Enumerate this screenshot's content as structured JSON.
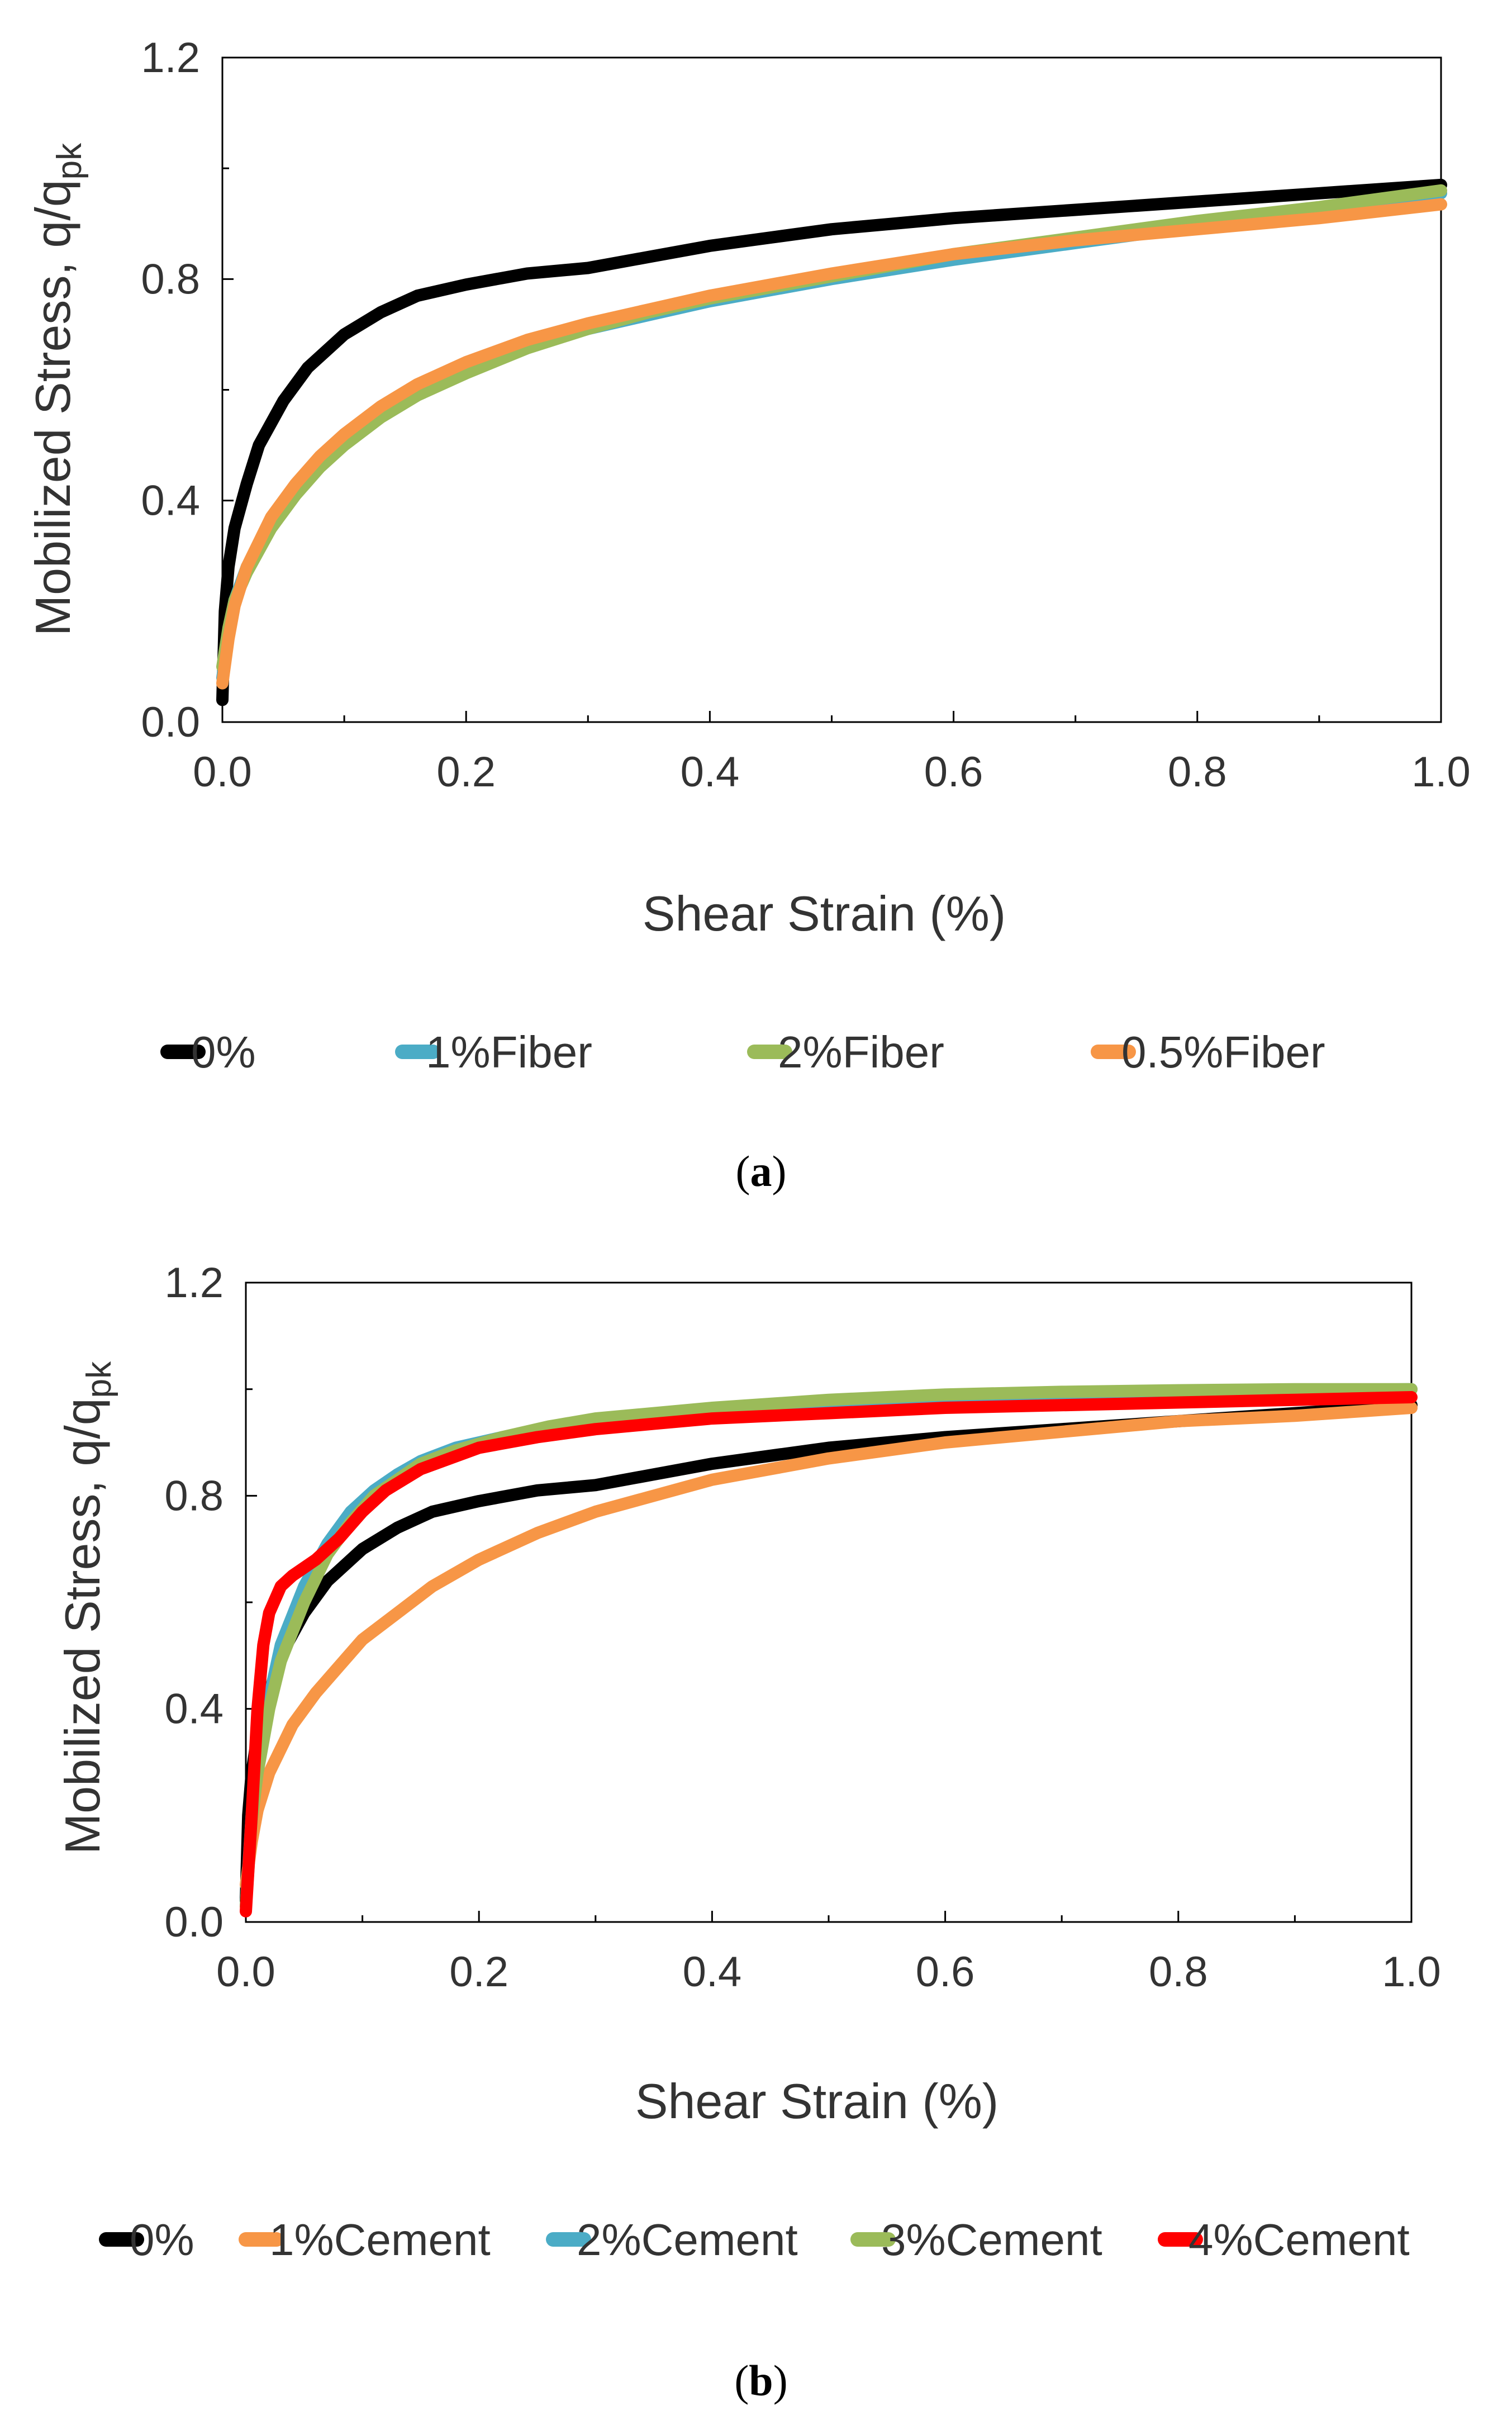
{
  "chart_data": [
    {
      "type": "line",
      "panel_label": "(a)",
      "xlabel": "Shear Strain (%)",
      "ylabel": "Mobilized Stress, q/q",
      "ylabel_sub": "pk",
      "xlim": [
        0,
        1.0
      ],
      "ylim": [
        0,
        1.2
      ],
      "xticks": [
        "0.0",
        "0.2",
        "0.4",
        "0.6",
        "0.8",
        "1.0"
      ],
      "yticks": [
        "0.0",
        "0.4",
        "0.8",
        "1.2"
      ],
      "grid": false,
      "legend_position": "bottom",
      "series": [
        {
          "name": "0%",
          "color": "#000000",
          "x": [
            0,
            0.002,
            0.005,
            0.01,
            0.02,
            0.03,
            0.05,
            0.07,
            0.1,
            0.13,
            0.16,
            0.2,
            0.25,
            0.3,
            0.35,
            0.4,
            0.45,
            0.5,
            0.55,
            0.6,
            0.7,
            0.8,
            0.9,
            1.0
          ],
          "y": [
            0.04,
            0.2,
            0.28,
            0.35,
            0.43,
            0.5,
            0.58,
            0.64,
            0.7,
            0.74,
            0.77,
            0.79,
            0.81,
            0.82,
            0.84,
            0.86,
            0.875,
            0.89,
            0.9,
            0.91,
            0.925,
            0.94,
            0.955,
            0.97
          ]
        },
        {
          "name": "1%Fiber",
          "color": "#4BACC6",
          "x": [
            0,
            0.005,
            0.01,
            0.02,
            0.04,
            0.06,
            0.08,
            0.1,
            0.13,
            0.16,
            0.2,
            0.25,
            0.3,
            0.35,
            0.4,
            0.45,
            0.5,
            0.6,
            0.7,
            0.8,
            0.9,
            1.0
          ],
          "y": [
            0.08,
            0.16,
            0.22,
            0.28,
            0.36,
            0.42,
            0.47,
            0.51,
            0.56,
            0.6,
            0.64,
            0.68,
            0.71,
            0.735,
            0.76,
            0.78,
            0.8,
            0.835,
            0.865,
            0.895,
            0.925,
            0.955
          ]
        },
        {
          "name": "2%Fiber",
          "color": "#9BBB59",
          "x": [
            0,
            0.005,
            0.01,
            0.02,
            0.04,
            0.06,
            0.08,
            0.1,
            0.13,
            0.16,
            0.2,
            0.25,
            0.3,
            0.35,
            0.4,
            0.45,
            0.5,
            0.6,
            0.7,
            0.8,
            0.9,
            1.0
          ],
          "y": [
            0.1,
            0.17,
            0.22,
            0.27,
            0.35,
            0.41,
            0.46,
            0.5,
            0.55,
            0.59,
            0.63,
            0.675,
            0.71,
            0.74,
            0.765,
            0.785,
            0.805,
            0.845,
            0.875,
            0.905,
            0.93,
            0.96
          ]
        },
        {
          "name": "0.5%Fiber",
          "color": "#F79646",
          "x": [
            0,
            0.005,
            0.01,
            0.02,
            0.04,
            0.06,
            0.08,
            0.1,
            0.13,
            0.16,
            0.2,
            0.25,
            0.3,
            0.35,
            0.4,
            0.45,
            0.5,
            0.6,
            0.7,
            0.8,
            0.9,
            1.0
          ],
          "y": [
            0.07,
            0.15,
            0.21,
            0.28,
            0.37,
            0.43,
            0.48,
            0.52,
            0.57,
            0.61,
            0.65,
            0.69,
            0.72,
            0.745,
            0.77,
            0.79,
            0.81,
            0.845,
            0.87,
            0.89,
            0.91,
            0.935
          ]
        }
      ]
    },
    {
      "type": "line",
      "panel_label": "(b)",
      "xlabel": "Shear Strain (%)",
      "ylabel": "Mobilized Stress, q/q",
      "ylabel_sub": "pk",
      "xlim": [
        0,
        1.0
      ],
      "ylim": [
        0,
        1.2
      ],
      "xticks": [
        "0.0",
        "0.2",
        "0.4",
        "0.6",
        "0.8",
        "1.0"
      ],
      "yticks": [
        "0.0",
        "0.4",
        "0.8",
        "1.2"
      ],
      "grid": false,
      "legend_position": "bottom",
      "series": [
        {
          "name": "0%",
          "color": "#000000",
          "x": [
            0,
            0.002,
            0.005,
            0.01,
            0.02,
            0.03,
            0.05,
            0.07,
            0.1,
            0.13,
            0.16,
            0.2,
            0.25,
            0.3,
            0.35,
            0.4,
            0.45,
            0.5,
            0.55,
            0.6,
            0.7,
            0.8,
            0.9,
            1.0
          ],
          "y": [
            0.04,
            0.2,
            0.28,
            0.35,
            0.43,
            0.5,
            0.58,
            0.64,
            0.7,
            0.74,
            0.77,
            0.79,
            0.81,
            0.82,
            0.84,
            0.86,
            0.875,
            0.89,
            0.9,
            0.91,
            0.925,
            0.94,
            0.955,
            0.97
          ]
        },
        {
          "name": "1%Cement",
          "color": "#F79646",
          "x": [
            0,
            0.005,
            0.01,
            0.02,
            0.04,
            0.06,
            0.08,
            0.1,
            0.13,
            0.16,
            0.2,
            0.25,
            0.3,
            0.35,
            0.4,
            0.45,
            0.5,
            0.6,
            0.7,
            0.8,
            0.9,
            1.0
          ],
          "y": [
            0.07,
            0.15,
            0.21,
            0.28,
            0.37,
            0.43,
            0.48,
            0.53,
            0.58,
            0.63,
            0.68,
            0.73,
            0.77,
            0.8,
            0.83,
            0.85,
            0.87,
            0.9,
            0.92,
            0.94,
            0.95,
            0.965
          ]
        },
        {
          "name": "2%Cement",
          "color": "#4BACC6",
          "x": [
            0,
            0.005,
            0.01,
            0.02,
            0.03,
            0.05,
            0.07,
            0.09,
            0.11,
            0.13,
            0.15,
            0.18,
            0.22,
            0.26,
            0.3,
            0.35,
            0.4,
            0.5,
            0.6,
            0.7,
            0.8,
            0.9,
            1.0
          ],
          "y": [
            0.03,
            0.2,
            0.3,
            0.42,
            0.52,
            0.63,
            0.71,
            0.77,
            0.81,
            0.84,
            0.865,
            0.89,
            0.91,
            0.925,
            0.935,
            0.95,
            0.96,
            0.975,
            0.985,
            0.99,
            0.995,
            0.998,
            1.0
          ]
        },
        {
          "name": "3%Cement",
          "color": "#9BBB59",
          "x": [
            0,
            0.005,
            0.01,
            0.02,
            0.03,
            0.05,
            0.07,
            0.09,
            0.11,
            0.13,
            0.15,
            0.18,
            0.22,
            0.26,
            0.3,
            0.35,
            0.4,
            0.5,
            0.6,
            0.7,
            0.8,
            0.9,
            1.0
          ],
          "y": [
            0.03,
            0.19,
            0.28,
            0.4,
            0.49,
            0.6,
            0.69,
            0.75,
            0.8,
            0.83,
            0.86,
            0.885,
            0.91,
            0.93,
            0.945,
            0.955,
            0.965,
            0.98,
            0.99,
            0.995,
            0.998,
            1.0,
            1.0
          ]
        },
        {
          "name": "4%Cement",
          "color": "#FF0000",
          "x": [
            0,
            0.005,
            0.01,
            0.015,
            0.02,
            0.03,
            0.04,
            0.06,
            0.08,
            0.1,
            0.12,
            0.15,
            0.2,
            0.25,
            0.3,
            0.35,
            0.4,
            0.5,
            0.6,
            0.7,
            0.8,
            0.9,
            1.0
          ],
          "y": [
            0.02,
            0.2,
            0.4,
            0.52,
            0.58,
            0.63,
            0.65,
            0.68,
            0.72,
            0.77,
            0.81,
            0.85,
            0.89,
            0.91,
            0.925,
            0.935,
            0.945,
            0.955,
            0.965,
            0.97,
            0.975,
            0.98,
            0.985
          ]
        }
      ]
    }
  ]
}
